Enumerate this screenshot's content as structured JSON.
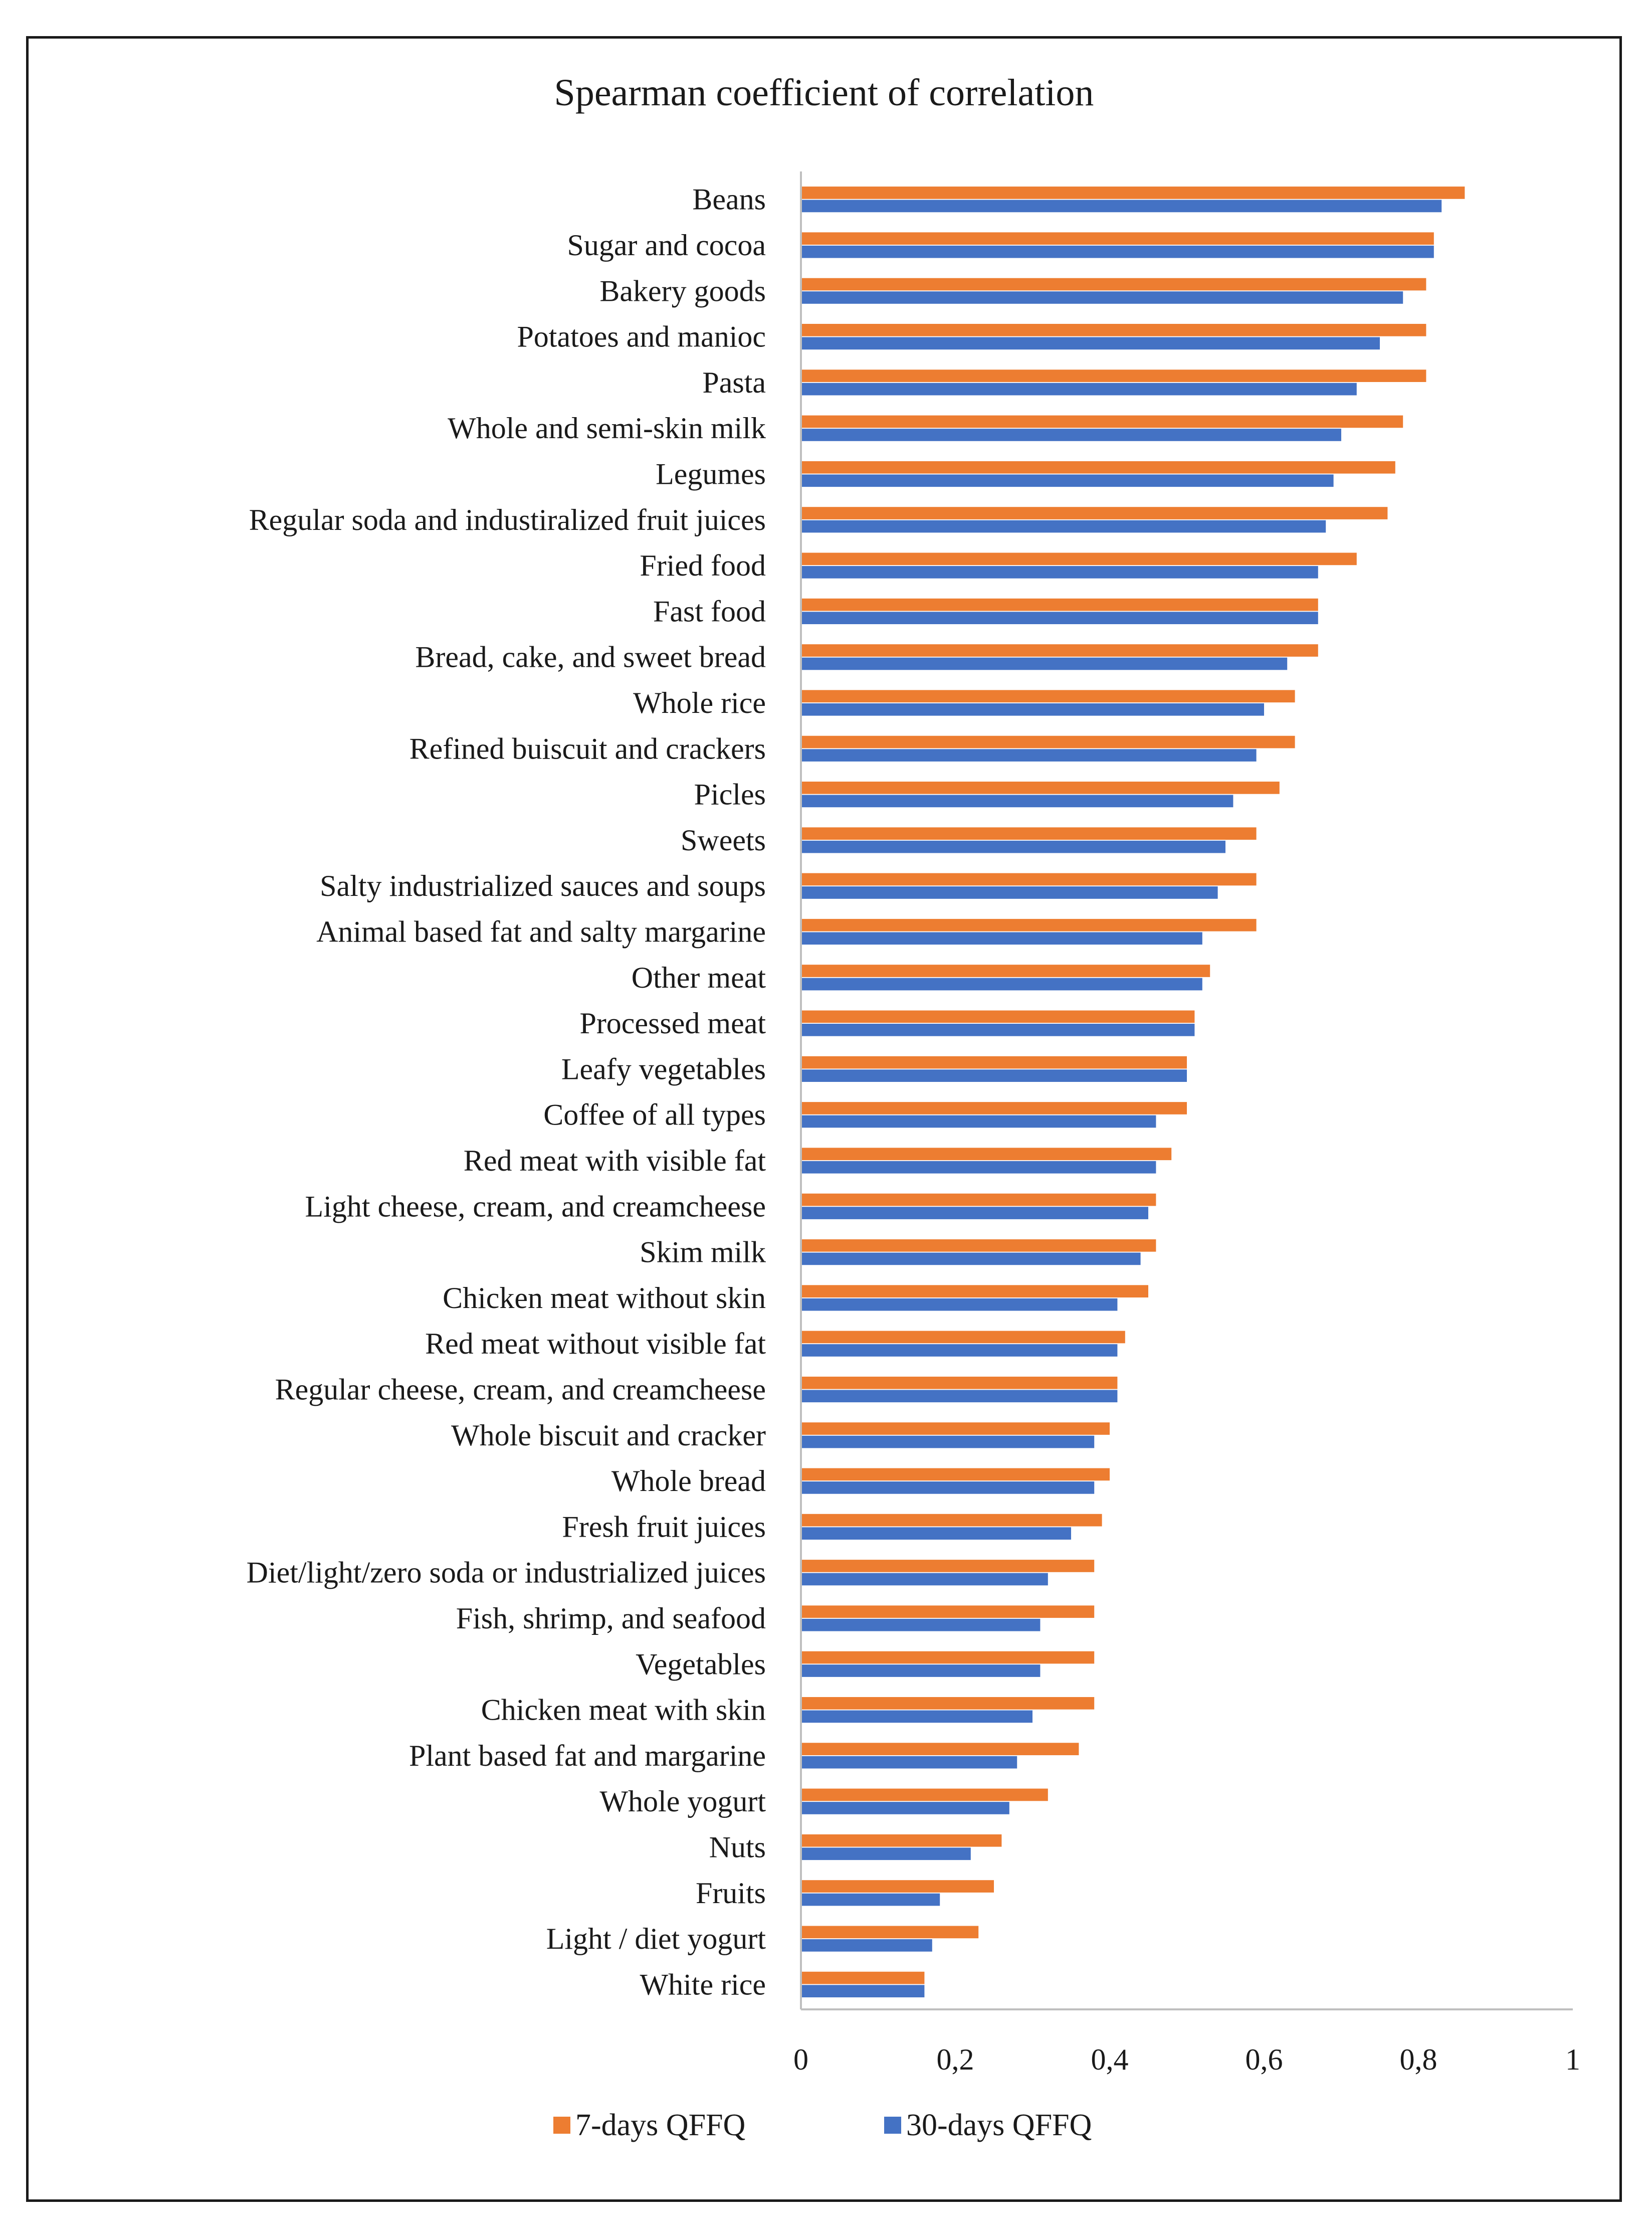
{
  "chart_data": {
    "type": "bar",
    "orientation": "horizontal",
    "title": "Spearman coefficient of correlation",
    "xlabel": "",
    "ylabel": "",
    "xlim": [
      0,
      1
    ],
    "x_ticks": [
      "0",
      "0,2",
      "0,4",
      "0,6",
      "0,8",
      "1"
    ],
    "grid": false,
    "legend_position": "bottom",
    "categories": [
      "Beans",
      "Sugar and cocoa",
      "Bakery goods",
      "Potatoes and manioc",
      "Pasta",
      "Whole and semi-skin milk",
      "Legumes",
      "Regular soda and industiralized fruit juices",
      "Fried food",
      "Fast food",
      "Bread, cake, and sweet bread",
      "Whole rice",
      "Refined buiscuit and crackers",
      "Picles",
      "Sweets",
      "Salty industrialized sauces and soups",
      "Animal based fat and salty margarine",
      "Other meat",
      "Processed meat",
      "Leafy vegetables",
      "Coffee of all types",
      "Red meat with visible fat",
      "Light cheese, cream, and creamcheese",
      "Skim milk",
      "Chicken meat without skin",
      "Red meat without visible fat",
      "Regular cheese, cream, and creamcheese",
      "Whole biscuit and cracker",
      "Whole bread",
      "Fresh fruit juices",
      "Diet/light/zero soda or industrialized juices",
      "Fish, shrimp, and seafood",
      "Vegetables",
      "Chicken meat with skin",
      "Plant based fat and margarine",
      "Whole yogurt",
      "Nuts",
      "Fruits",
      "Light / diet yogurt",
      "White rice"
    ],
    "series": [
      {
        "name": "7-days QFFQ",
        "color": "#ED7D31",
        "values": [
          0.86,
          0.82,
          0.81,
          0.81,
          0.81,
          0.78,
          0.77,
          0.76,
          0.72,
          0.67,
          0.67,
          0.64,
          0.64,
          0.62,
          0.59,
          0.59,
          0.59,
          0.53,
          0.51,
          0.5,
          0.5,
          0.48,
          0.46,
          0.46,
          0.45,
          0.42,
          0.41,
          0.4,
          0.4,
          0.39,
          0.38,
          0.38,
          0.38,
          0.38,
          0.36,
          0.32,
          0.26,
          0.25,
          0.23,
          0.16
        ]
      },
      {
        "name": "30-days QFFQ",
        "color": "#4472C4",
        "values": [
          0.83,
          0.82,
          0.78,
          0.75,
          0.72,
          0.7,
          0.69,
          0.68,
          0.67,
          0.67,
          0.63,
          0.6,
          0.59,
          0.56,
          0.55,
          0.54,
          0.52,
          0.52,
          0.51,
          0.5,
          0.46,
          0.46,
          0.45,
          0.44,
          0.41,
          0.41,
          0.41,
          0.38,
          0.38,
          0.35,
          0.32,
          0.31,
          0.31,
          0.3,
          0.28,
          0.27,
          0.22,
          0.18,
          0.17,
          0.16
        ]
      }
    ]
  }
}
